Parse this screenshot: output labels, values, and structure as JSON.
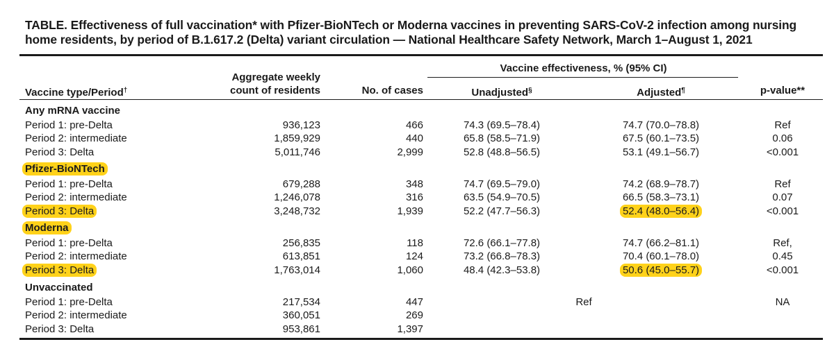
{
  "title": "TABLE. Effectiveness of full vaccination* with Pfizer-BioNTech or Moderna vaccines in preventing SARS-CoV-2 infection among nursing home residents, by period of B.1.617.2 (Delta) variant circulation — National Healthcare Safety Network, March 1–August 1, 2021",
  "headers": {
    "vaccine_type": "Vaccine type/Period",
    "vaccine_type_mark": "†",
    "agg_line1": "Aggregate weekly",
    "agg_line2": "count of residents",
    "cases": "No. of cases",
    "ve_group": "Vaccine effectiveness, % (95% CI)",
    "unadjusted": "Unadjusted",
    "unadjusted_mark": "§",
    "adjusted": "Adjusted",
    "adjusted_mark": "¶",
    "pvalue": "p-value**"
  },
  "highlight_color": "#ffd21a",
  "rows": [
    {
      "label": "Any mRNA vaccine"
    },
    {
      "label": "Period 1: pre-Delta",
      "agg": "936,123",
      "cases": "466",
      "unadj": "74.3 (69.5–78.4)",
      "adj": "74.7 (70.0–78.8)",
      "p": "Ref"
    },
    {
      "label": "Period 2: intermediate",
      "agg": "1,859,929",
      "cases": "440",
      "unadj": "65.8 (58.5–71.9)",
      "adj": "67.5 (60.1–73.5)",
      "p": "0.06"
    },
    {
      "label": "Period 3: Delta",
      "agg": "5,011,746",
      "cases": "2,999",
      "unadj": "52.8 (48.8–56.5)",
      "adj": "53.1 (49.1–56.7)",
      "p": "<0.001"
    },
    {
      "label": "Pfizer-BioNTech"
    },
    {
      "label": "Period 1: pre-Delta",
      "agg": "679,288",
      "cases": "348",
      "unadj": "74.7 (69.5–79.0)",
      "adj": "74.2 (68.9–78.7)",
      "p": "Ref"
    },
    {
      "label": "Period 2: intermediate",
      "agg": "1,246,078",
      "cases": "316",
      "unadj": "63.5 (54.9–70.5)",
      "adj": "66.5 (58.3–73.1)",
      "p": "0.07"
    },
    {
      "label": "Period 3: Delta",
      "agg": "3,248,732",
      "cases": "1,939",
      "unadj": "52.2 (47.7–56.3)",
      "adj": "52.4 (48.0–56.4)",
      "p": "<0.001"
    },
    {
      "label": "Moderna"
    },
    {
      "label": "Period 1: pre-Delta",
      "agg": "256,835",
      "cases": "118",
      "unadj": "72.6 (66.1–77.8)",
      "adj": "74.7 (66.2–81.1)",
      "p": "Ref,"
    },
    {
      "label": "Period 2: intermediate",
      "agg": "613,851",
      "cases": "124",
      "unadj": "73.2 (66.8–78.3)",
      "adj": "70.4 (60.1–78.0)",
      "p": "0.45"
    },
    {
      "label": "Period 3: Delta",
      "agg": "1,763,014",
      "cases": "1,060",
      "unadj": "48.4 (42.3–53.8)",
      "adj": "50.6 (45.0–55.7)",
      "p": "<0.001"
    },
    {
      "label": "Unvaccinated"
    },
    {
      "label": "Period 1: pre-Delta",
      "agg": "217,534",
      "cases": "447",
      "ref": "Ref",
      "p": "NA"
    },
    {
      "label": "Period 2: intermediate",
      "agg": "360,051",
      "cases": "269"
    },
    {
      "label": "Period 3: Delta",
      "agg": "953,861",
      "cases": "1,397"
    }
  ]
}
